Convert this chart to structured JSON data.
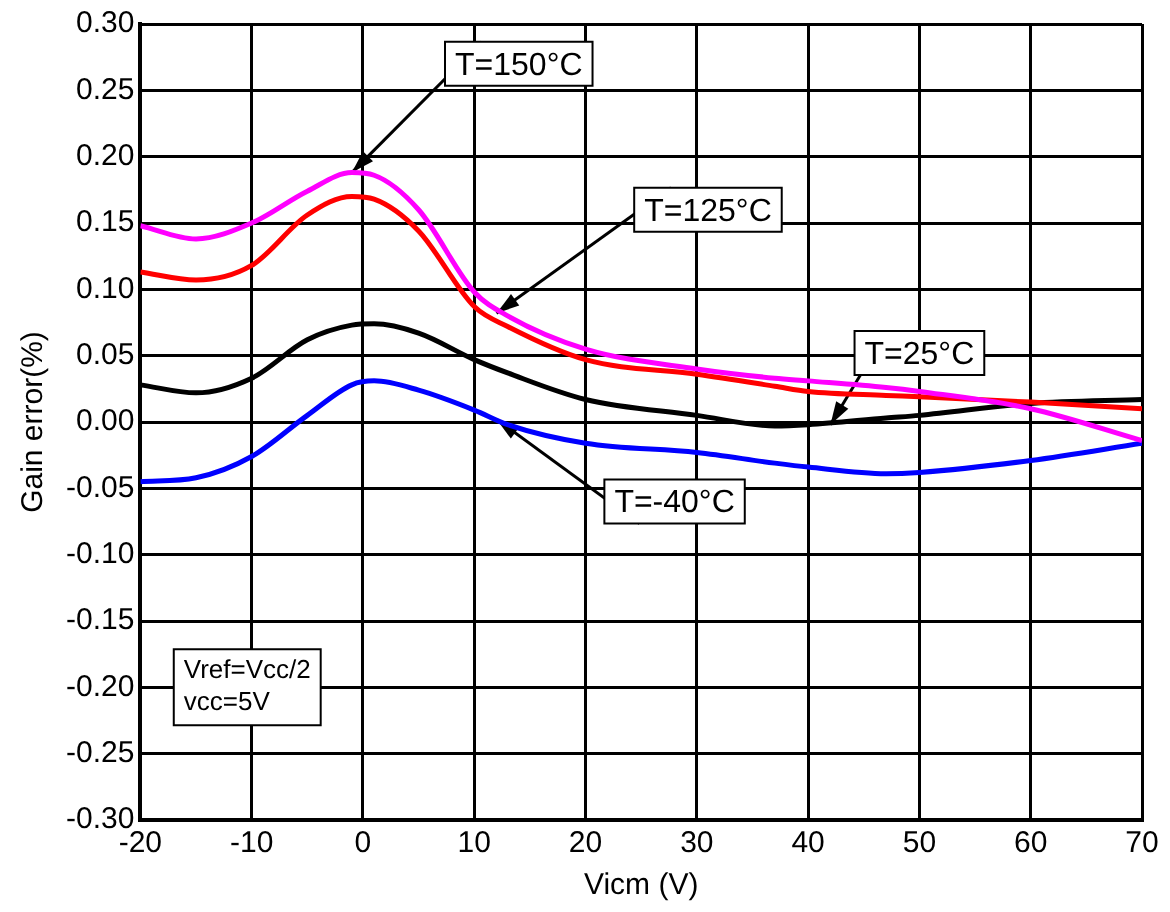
{
  "chart_data": {
    "type": "line",
    "xlabel": "Vicm (V)",
    "ylabel": "Gain error(%)",
    "xlim": [
      -20,
      70
    ],
    "xticks": [
      -20,
      -10,
      0,
      10,
      20,
      30,
      40,
      50,
      60,
      70
    ],
    "ylim": [
      -0.3,
      0.3
    ],
    "yticks": [
      {
        "value": -0.3,
        "label": "-0.30"
      },
      {
        "value": -0.25,
        "label": "-0.25"
      },
      {
        "value": -0.2,
        "label": "-0.20"
      },
      {
        "value": -0.15,
        "label": "-0.15"
      },
      {
        "value": -0.1,
        "label": "-0.10"
      },
      {
        "value": -0.05,
        "label": "-0.05"
      },
      {
        "value": 0,
        "label": "0.00"
      },
      {
        "value": 0.05,
        "label": "0.05"
      },
      {
        "value": 0.1,
        "label": "0.10"
      },
      {
        "value": 0.15,
        "label": "0.15"
      },
      {
        "value": 0.2,
        "label": "0.20"
      },
      {
        "value": 0.25,
        "label": "0.25"
      },
      {
        "value": 0.3,
        "label": "0.30"
      }
    ],
    "grid": true,
    "marker": "none",
    "line_style": "solid",
    "x": [
      -20,
      -15,
      -10,
      -5,
      -1,
      1,
      5,
      10,
      13,
      20,
      30,
      37,
      40,
      47,
      50,
      60,
      70
    ],
    "series": [
      {
        "color": "#ff00ff",
        "values": [
          0.148,
          0.138,
          0.15,
          0.174,
          0.188,
          0.186,
          0.16,
          0.098,
          0.08,
          0.055,
          0.04,
          0.033,
          0.031,
          0.026,
          0.023,
          0.01,
          -0.014
        ]
      },
      {
        "color": "#ff0000",
        "values": [
          0.113,
          0.107,
          0.118,
          0.156,
          0.17,
          0.168,
          0.144,
          0.087,
          0.072,
          0.047,
          0.036,
          0.027,
          0.023,
          0.02,
          0.019,
          0.015,
          0.01
        ]
      },
      {
        "color": "#000000",
        "values": [
          0.028,
          0.022,
          0.033,
          0.062,
          0.073,
          0.074,
          0.067,
          0.047,
          0.037,
          0.017,
          0.005,
          -0.003,
          -0.002,
          0.003,
          0.005,
          0.014,
          0.017
        ]
      },
      {
        "color": "#0000ff",
        "values": [
          -0.045,
          -0.042,
          -0.026,
          0.005,
          0.028,
          0.031,
          0.024,
          0.009,
          -0.002,
          -0.016,
          -0.023,
          -0.031,
          -0.034,
          -0.039,
          -0.038,
          -0.029,
          -0.016
        ]
      }
    ],
    "annotations": [
      {
        "text": "T=150°C",
        "x": -1,
        "y": 0.188
      },
      {
        "text": "T=125°C",
        "x": 12,
        "y": 0.082
      },
      {
        "text": "T=25°C",
        "x": 42,
        "y": -0.002
      },
      {
        "text": "T=-40°C",
        "x": 12,
        "y": 0.002
      },
      "Vref=Vcc/2\nvcc=5V"
    ]
  }
}
